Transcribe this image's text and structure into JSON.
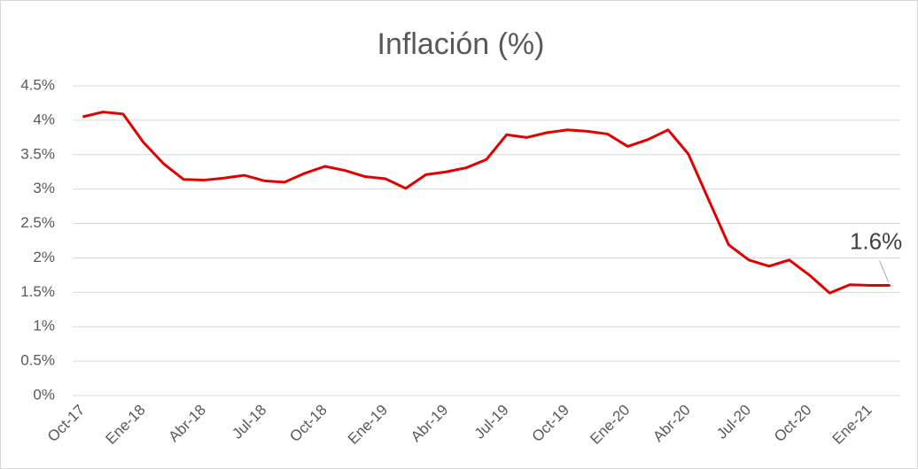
{
  "chart_data": {
    "type": "line",
    "title": "Inflación (%)",
    "categories": [
      "Oct-17",
      null,
      null,
      "Ene-18",
      null,
      null,
      "Abr-18",
      null,
      null,
      "Jul-18",
      null,
      null,
      "Oct-18",
      null,
      null,
      "Ene-19",
      null,
      null,
      "Abr-19",
      null,
      null,
      "Jul-19",
      null,
      null,
      "Oct-19",
      null,
      null,
      "Ene-20",
      null,
      null,
      "Abr-20",
      null,
      null,
      "Jul-20",
      null,
      null,
      "Oct-20",
      null,
      null,
      "Ene-21",
      null
    ],
    "series": [
      {
        "name": "Inflación",
        "color": "#e30000",
        "values": [
          4.05,
          4.12,
          4.09,
          3.68,
          3.37,
          3.14,
          3.13,
          3.16,
          3.2,
          3.12,
          3.1,
          3.23,
          3.33,
          3.27,
          3.18,
          3.15,
          3.01,
          3.21,
          3.25,
          3.31,
          3.43,
          3.79,
          3.75,
          3.82,
          3.86,
          3.84,
          3.8,
          3.62,
          3.72,
          3.86,
          3.51,
          2.85,
          2.19,
          1.97,
          1.88,
          1.97,
          1.75,
          1.49,
          1.61,
          1.6,
          1.6
        ],
        "value_labels": [
          null,
          null,
          null,
          null,
          null,
          null,
          null,
          null,
          null,
          null,
          null,
          null,
          null,
          null,
          null,
          null,
          null,
          null,
          null,
          null,
          null,
          null,
          null,
          null,
          null,
          null,
          null,
          null,
          null,
          null,
          null,
          null,
          null,
          null,
          null,
          null,
          null,
          null,
          null,
          null,
          "1.6%"
        ]
      }
    ],
    "ylim": [
      0,
      4.5
    ],
    "yticks": [
      {
        "value": 0,
        "label": "0%"
      },
      {
        "value": 0.5,
        "label": "0.5%"
      },
      {
        "value": 1,
        "label": "1%"
      },
      {
        "value": 1.5,
        "label": "1.5%"
      },
      {
        "value": 2,
        "label": "2%"
      },
      {
        "value": 2.5,
        "label": "2.5%"
      },
      {
        "value": 3,
        "label": "3%"
      },
      {
        "value": 3.5,
        "label": "3.5%"
      },
      {
        "value": 4,
        "label": "4%"
      },
      {
        "value": 4.5,
        "label": "4.5%"
      }
    ],
    "grid": true
  }
}
